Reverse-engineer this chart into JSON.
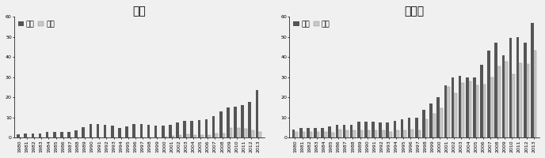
{
  "japan": {
    "title": "日本",
    "years": [
      1980,
      1981,
      1982,
      1983,
      1984,
      1985,
      1986,
      1987,
      1988,
      1989,
      1990,
      1991,
      1992,
      1993,
      1994,
      1995,
      1996,
      1997,
      1998,
      1999,
      2000,
      2001,
      2002,
      2003,
      2004,
      2005,
      2006,
      2007,
      2008,
      2009,
      2010,
      2011,
      2012,
      2013
    ],
    "outward": [
      1.8,
      2.0,
      2.3,
      2.3,
      2.7,
      3.0,
      2.8,
      3.0,
      3.5,
      5.2,
      6.7,
      6.7,
      6.3,
      6.0,
      5.0,
      5.7,
      6.7,
      6.7,
      6.3,
      6.2,
      6.0,
      6.3,
      7.5,
      8.2,
      8.5,
      8.7,
      9.2,
      10.7,
      13.0,
      15.0,
      15.5,
      16.0,
      17.8,
      23.5
    ],
    "inward": [
      0.3,
      0.3,
      0.3,
      0.3,
      0.3,
      0.3,
      0.3,
      0.3,
      0.3,
      0.3,
      0.3,
      0.3,
      0.3,
      0.3,
      0.3,
      0.3,
      0.3,
      0.3,
      0.3,
      0.3,
      0.5,
      1.0,
      1.5,
      1.8,
      1.5,
      1.5,
      1.5,
      2.0,
      2.0,
      5.0,
      4.7,
      4.5,
      3.5,
      3.0
    ],
    "ylim": [
      0,
      60
    ],
    "yticks": [
      0,
      10,
      20,
      30,
      40,
      50,
      60
    ]
  },
  "germany": {
    "title": "ドイツ",
    "years": [
      1980,
      1981,
      1982,
      1983,
      1984,
      1985,
      1986,
      1987,
      1988,
      1989,
      1990,
      1991,
      1992,
      1993,
      1994,
      1995,
      1996,
      1997,
      1998,
      1999,
      2000,
      2001,
      2002,
      2003,
      2004,
      2005,
      2006,
      2007,
      2008,
      2009,
      2010,
      2011,
      2012,
      2013
    ],
    "outward": [
      4.0,
      5.0,
      5.0,
      5.0,
      5.0,
      5.5,
      6.5,
      6.5,
      6.5,
      8.0,
      8.0,
      8.0,
      7.5,
      7.5,
      8.5,
      9.0,
      10.0,
      10.0,
      14.0,
      17.0,
      20.0,
      26.0,
      30.0,
      30.5,
      30.0,
      30.0,
      36.0,
      43.0,
      47.0,
      41.0,
      49.5,
      50.0,
      47.0,
      57.0
    ],
    "inward": [
      3.0,
      3.0,
      3.0,
      3.0,
      3.0,
      2.5,
      4.0,
      3.5,
      3.5,
      3.5,
      3.5,
      3.5,
      3.5,
      3.0,
      3.5,
      3.5,
      4.0,
      3.5,
      9.0,
      12.0,
      14.5,
      25.0,
      22.0,
      27.0,
      28.0,
      26.0,
      26.5,
      30.0,
      35.5,
      37.5,
      31.5,
      37.0,
      36.5,
      43.0
    ],
    "ylim": [
      0,
      60
    ],
    "yticks": [
      0,
      10,
      20,
      30,
      40,
      50,
      60
    ]
  },
  "legend_labels": [
    "対外",
    "対内"
  ],
  "outward_color": "#555555",
  "inward_color": "#c8c8c8",
  "bar_width": 0.4,
  "fontsize_title": 8.5,
  "fontsize_tick": 4.5,
  "fontsize_legend": 6.5,
  "bg_color": "#f0f0f0"
}
